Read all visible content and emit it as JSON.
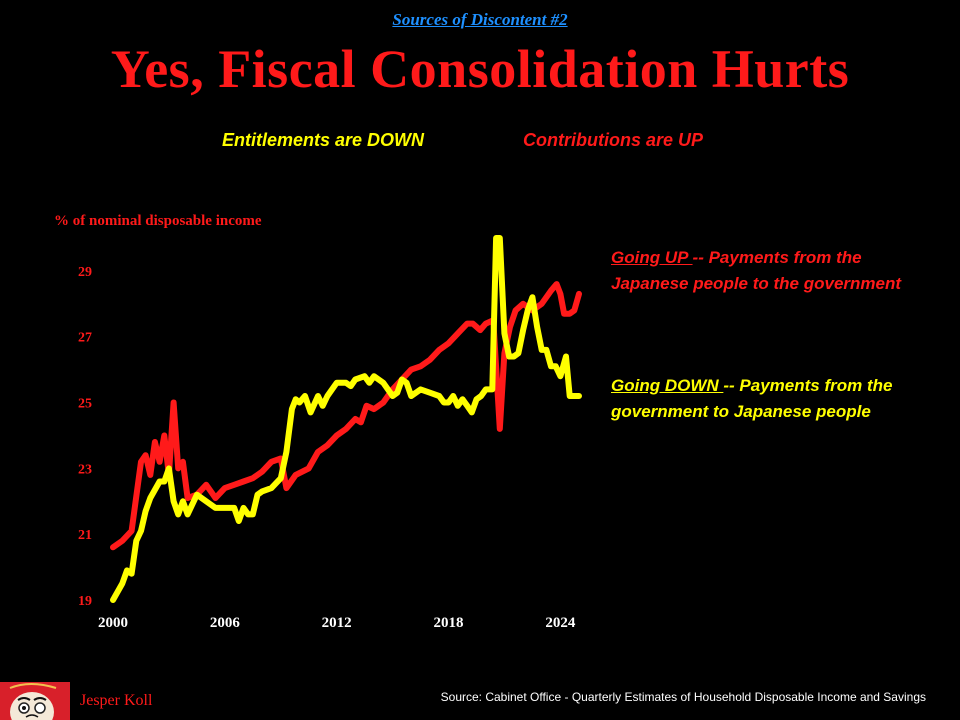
{
  "header": {
    "kicker": "Sources of Discontent #2",
    "title": "Yes, Fiscal Consolidation Hurts"
  },
  "subtitles": {
    "left": "Entitlements are DOWN",
    "right": "Contributions are UP"
  },
  "notes": {
    "up_head": "Going UP ",
    "up_body": "-- Payments from the Japanese people to the government",
    "down_head": "Going DOWN ",
    "down_body": "-- Payments from the government to Japanese people"
  },
  "footer": {
    "author": "Jesper Koll",
    "source": "Source: Cabinet Office -  Quarterly Estimates of Household Disposable Income and Savings",
    "logo_icon": "daruma-icon"
  },
  "colors": {
    "background": "#000000",
    "contributions": "#ff1a1a",
    "entitlements": "#ffff00",
    "kicker": "#1e90ff"
  },
  "chart_data": {
    "type": "line",
    "ylabel": "% of nominal disposable income",
    "xlabel": "",
    "ylim": [
      19,
      30
    ],
    "xlim": [
      2000,
      2025
    ],
    "yticks": [
      19,
      21,
      23,
      25,
      27,
      29
    ],
    "xticks": [
      2000,
      2006,
      2012,
      2018,
      2024
    ],
    "grid": false,
    "legend": "none",
    "series": [
      {
        "key": "contributions",
        "color": "#ff1a1a",
        "points": [
          [
            2000.0,
            20.6
          ],
          [
            2000.5,
            20.8
          ],
          [
            2001.0,
            21.1
          ],
          [
            2001.5,
            23.2
          ],
          [
            2001.75,
            23.4
          ],
          [
            2002.0,
            22.8
          ],
          [
            2002.25,
            23.8
          ],
          [
            2002.5,
            23.2
          ],
          [
            2002.75,
            24.0
          ],
          [
            2003.0,
            22.8
          ],
          [
            2003.25,
            25.0
          ],
          [
            2003.5,
            23.0
          ],
          [
            2003.75,
            23.2
          ],
          [
            2004.0,
            22.1
          ],
          [
            2004.5,
            22.2
          ],
          [
            2005.0,
            22.5
          ],
          [
            2005.5,
            22.1
          ],
          [
            2006.0,
            22.4
          ],
          [
            2006.5,
            22.5
          ],
          [
            2007.0,
            22.6
          ],
          [
            2007.5,
            22.7
          ],
          [
            2008.0,
            22.9
          ],
          [
            2008.5,
            23.2
          ],
          [
            2009.0,
            23.3
          ],
          [
            2009.3,
            22.4
          ],
          [
            2009.8,
            22.8
          ],
          [
            2010.5,
            23.0
          ],
          [
            2011.0,
            23.5
          ],
          [
            2011.5,
            23.7
          ],
          [
            2012.0,
            24.0
          ],
          [
            2012.5,
            24.2
          ],
          [
            2013.0,
            24.5
          ],
          [
            2013.3,
            24.4
          ],
          [
            2013.6,
            24.9
          ],
          [
            2014.0,
            24.8
          ],
          [
            2014.5,
            25.0
          ],
          [
            2015.0,
            25.4
          ],
          [
            2015.5,
            25.7
          ],
          [
            2016.0,
            26.0
          ],
          [
            2016.5,
            26.1
          ],
          [
            2017.0,
            26.3
          ],
          [
            2017.5,
            26.6
          ],
          [
            2018.0,
            26.8
          ],
          [
            2018.5,
            27.1
          ],
          [
            2019.0,
            27.4
          ],
          [
            2019.3,
            27.4
          ],
          [
            2019.7,
            27.2
          ],
          [
            2020.0,
            27.4
          ],
          [
            2020.4,
            27.5
          ],
          [
            2020.75,
            24.2
          ],
          [
            2021.0,
            26.5
          ],
          [
            2021.3,
            27.3
          ],
          [
            2021.6,
            27.8
          ],
          [
            2022.0,
            28.0
          ],
          [
            2022.5,
            27.8
          ],
          [
            2023.0,
            28.0
          ],
          [
            2023.5,
            28.4
          ],
          [
            2023.8,
            28.6
          ],
          [
            2024.0,
            28.3
          ],
          [
            2024.2,
            27.7
          ],
          [
            2024.5,
            27.7
          ],
          [
            2024.75,
            27.8
          ],
          [
            2025.0,
            28.3
          ]
        ]
      },
      {
        "key": "entitlements",
        "color": "#ffff00",
        "points": [
          [
            2000.0,
            19.0
          ],
          [
            2000.5,
            19.5
          ],
          [
            2000.75,
            19.9
          ],
          [
            2001.0,
            19.8
          ],
          [
            2001.25,
            20.8
          ],
          [
            2001.5,
            21.1
          ],
          [
            2001.75,
            21.7
          ],
          [
            2002.0,
            22.1
          ],
          [
            2002.5,
            22.6
          ],
          [
            2002.75,
            22.6
          ],
          [
            2003.0,
            23.0
          ],
          [
            2003.25,
            22.0
          ],
          [
            2003.5,
            21.6
          ],
          [
            2003.75,
            22.0
          ],
          [
            2004.0,
            21.6
          ],
          [
            2004.5,
            22.2
          ],
          [
            2005.0,
            22.0
          ],
          [
            2005.5,
            21.8
          ],
          [
            2006.0,
            21.8
          ],
          [
            2006.5,
            21.8
          ],
          [
            2006.75,
            21.4
          ],
          [
            2007.0,
            21.8
          ],
          [
            2007.25,
            21.6
          ],
          [
            2007.5,
            21.6
          ],
          [
            2007.75,
            22.2
          ],
          [
            2008.0,
            22.3
          ],
          [
            2008.5,
            22.4
          ],
          [
            2009.0,
            22.7
          ],
          [
            2009.3,
            23.5
          ],
          [
            2009.6,
            24.8
          ],
          [
            2009.8,
            25.1
          ],
          [
            2010.0,
            25.0
          ],
          [
            2010.3,
            25.2
          ],
          [
            2010.6,
            24.7
          ],
          [
            2011.0,
            25.2
          ],
          [
            2011.25,
            24.9
          ],
          [
            2011.5,
            25.2
          ],
          [
            2012.0,
            25.6
          ],
          [
            2012.5,
            25.6
          ],
          [
            2012.75,
            25.5
          ],
          [
            2013.0,
            25.7
          ],
          [
            2013.5,
            25.8
          ],
          [
            2013.75,
            25.6
          ],
          [
            2014.0,
            25.8
          ],
          [
            2014.5,
            25.6
          ],
          [
            2015.0,
            25.2
          ],
          [
            2015.25,
            25.3
          ],
          [
            2015.5,
            25.7
          ],
          [
            2015.75,
            25.6
          ],
          [
            2016.0,
            25.2
          ],
          [
            2016.5,
            25.4
          ],
          [
            2017.0,
            25.3
          ],
          [
            2017.5,
            25.2
          ],
          [
            2017.75,
            25.0
          ],
          [
            2018.0,
            25.0
          ],
          [
            2018.25,
            25.2
          ],
          [
            2018.5,
            24.9
          ],
          [
            2018.75,
            25.1
          ],
          [
            2019.0,
            24.9
          ],
          [
            2019.25,
            24.7
          ],
          [
            2019.5,
            25.1
          ],
          [
            2019.75,
            25.2
          ],
          [
            2020.0,
            25.4
          ],
          [
            2020.35,
            25.4
          ],
          [
            2020.55,
            30.0
          ],
          [
            2020.75,
            30.0
          ],
          [
            2021.0,
            27.1
          ],
          [
            2021.25,
            26.4
          ],
          [
            2021.5,
            26.4
          ],
          [
            2021.75,
            26.5
          ],
          [
            2022.0,
            27.2
          ],
          [
            2022.25,
            27.8
          ],
          [
            2022.5,
            28.2
          ],
          [
            2022.75,
            27.3
          ],
          [
            2023.0,
            26.6
          ],
          [
            2023.25,
            26.6
          ],
          [
            2023.5,
            26.1
          ],
          [
            2023.75,
            26.1
          ],
          [
            2024.0,
            25.8
          ],
          [
            2024.3,
            26.4
          ],
          [
            2024.5,
            25.2
          ],
          [
            2025.0,
            25.2
          ]
        ]
      }
    ]
  }
}
